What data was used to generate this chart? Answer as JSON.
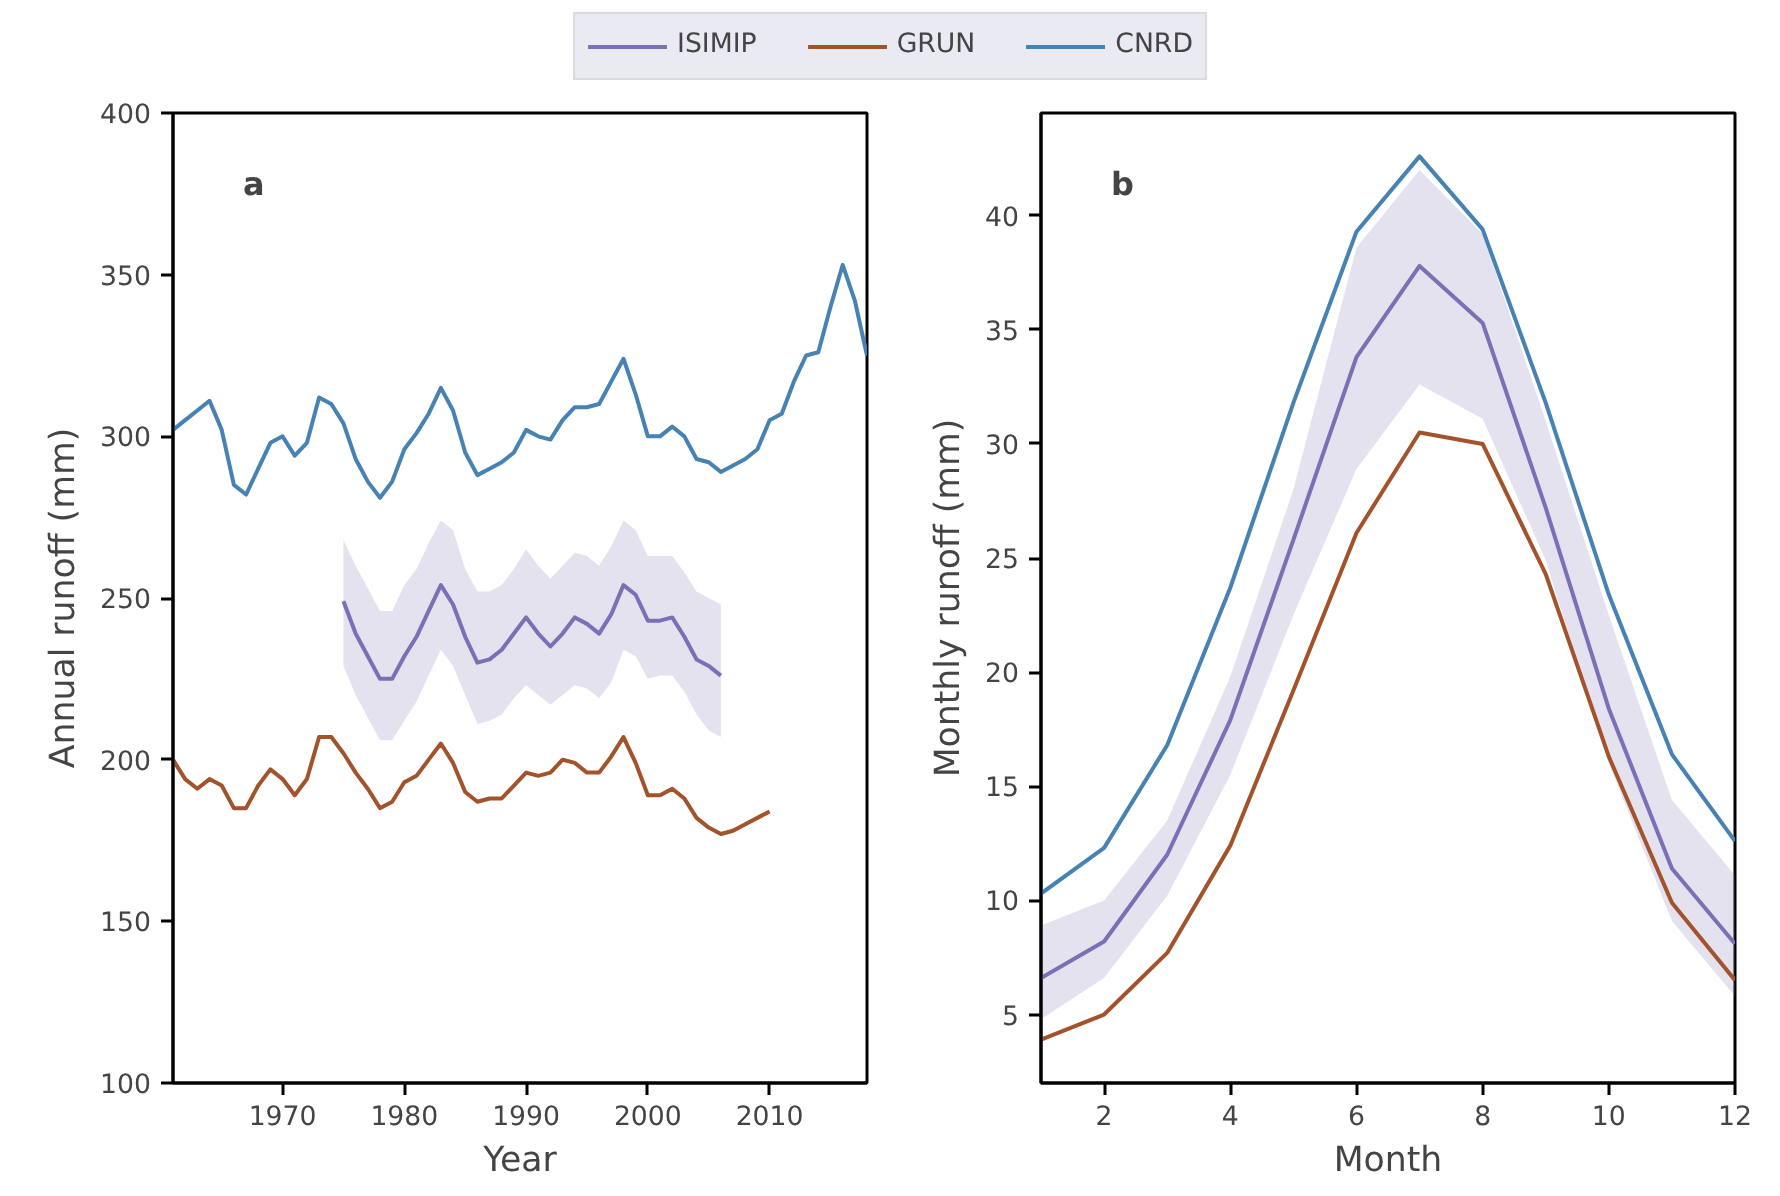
{
  "chart_data": [
    {
      "type": "line",
      "title": "a",
      "xlabel": "Year",
      "ylabel": "Annual runoff (mm)",
      "xlim": [
        1961,
        2018
      ],
      "ylim": [
        100,
        400
      ],
      "xticks": [
        1970,
        1980,
        1990,
        2000,
        2010
      ],
      "yticks": [
        100,
        150,
        200,
        250,
        300,
        350,
        400
      ],
      "grid": false,
      "legend": "top",
      "line_style": "solid",
      "series": [
        {
          "name": "ISIMIP",
          "color": "#7b6fb5",
          "x": [
            1975,
            1976,
            1977,
            1978,
            1979,
            1980,
            1981,
            1982,
            1983,
            1984,
            1985,
            1986,
            1987,
            1988,
            1989,
            1990,
            1991,
            1992,
            1993,
            1994,
            1995,
            1996,
            1997,
            1998,
            1999,
            2000,
            2001,
            2002,
            2003,
            2004,
            2005,
            2006
          ],
          "values": [
            249,
            239,
            232,
            225,
            225,
            232,
            238,
            246,
            254,
            248,
            238,
            230,
            231,
            234,
            239,
            244,
            239,
            235,
            239,
            244,
            242,
            239,
            245,
            254,
            251,
            243,
            243,
            244,
            238,
            231,
            229,
            226
          ],
          "upper": [
            268,
            260,
            253,
            246,
            246,
            254,
            259,
            267,
            274,
            271,
            259,
            252,
            252,
            254,
            259,
            265,
            260,
            256,
            260,
            264,
            263,
            260,
            266,
            274,
            271,
            263,
            263,
            263,
            258,
            252,
            250,
            248
          ],
          "lower": [
            229,
            220,
            213,
            206,
            206,
            212,
            218,
            226,
            234,
            229,
            220,
            211,
            212,
            214,
            219,
            223,
            220,
            217,
            220,
            223,
            222,
            219,
            224,
            234,
            232,
            225,
            226,
            226,
            221,
            214,
            209,
            207
          ]
        },
        {
          "name": "GRUN",
          "color": "#a3532b",
          "x": [
            1961,
            1962,
            1963,
            1964,
            1965,
            1966,
            1967,
            1968,
            1969,
            1970,
            1971,
            1972,
            1973,
            1974,
            1975,
            1976,
            1977,
            1978,
            1979,
            1980,
            1981,
            1982,
            1983,
            1984,
            1985,
            1986,
            1987,
            1988,
            1989,
            1990,
            1991,
            1992,
            1993,
            1994,
            1995,
            1996,
            1997,
            1998,
            1999,
            2000,
            2001,
            2002,
            2003,
            2004,
            2005,
            2006,
            2007,
            2008,
            2009,
            2010
          ],
          "values": [
            200,
            194,
            191,
            194,
            192,
            185,
            185,
            192,
            197,
            194,
            189,
            194,
            207,
            207,
            202,
            196,
            191,
            185,
            187,
            193,
            195,
            200,
            205,
            199,
            190,
            187,
            188,
            188,
            192,
            196,
            195,
            196,
            200,
            199,
            196,
            196,
            201,
            207,
            199,
            189,
            189,
            191,
            188,
            182,
            179,
            177,
            178,
            180,
            182,
            184
          ]
        },
        {
          "name": "CNRD",
          "color": "#4682b4",
          "x": [
            1961,
            1962,
            1963,
            1964,
            1965,
            1966,
            1967,
            1968,
            1969,
            1970,
            1971,
            1972,
            1973,
            1974,
            1975,
            1976,
            1977,
            1978,
            1979,
            1980,
            1981,
            1982,
            1983,
            1984,
            1985,
            1986,
            1987,
            1988,
            1989,
            1990,
            1991,
            1992,
            1993,
            1994,
            1995,
            1996,
            1997,
            1998,
            1999,
            2000,
            2001,
            2002,
            2003,
            2004,
            2005,
            2006,
            2007,
            2008,
            2009,
            2010,
            2011,
            2012,
            2013,
            2014,
            2015,
            2016,
            2017,
            2018
          ],
          "values": [
            302,
            305,
            308,
            311,
            302,
            285,
            282,
            290,
            298,
            300,
            294,
            298,
            312,
            310,
            304,
            293,
            286,
            281,
            286,
            296,
            301,
            307,
            315,
            308,
            295,
            288,
            290,
            292,
            295,
            302,
            300,
            299,
            305,
            309,
            309,
            310,
            317,
            324,
            313,
            300,
            300,
            303,
            300,
            293,
            292,
            289,
            291,
            293,
            296,
            305,
            307,
            317,
            325,
            326,
            340,
            353,
            342,
            325
          ]
        }
      ]
    },
    {
      "type": "line",
      "title": "b",
      "xlabel": "Month",
      "ylabel": "Monthly runoff (mm)",
      "xlim": [
        1,
        12
      ],
      "ylim": [
        2.0,
        44.5
      ],
      "xticks": [
        2,
        4,
        6,
        8,
        10,
        12
      ],
      "yticks": [
        5,
        10,
        15,
        20,
        25,
        30,
        35,
        40
      ],
      "grid": false,
      "legend": "top",
      "line_style": "solid",
      "x": [
        1,
        2,
        3,
        4,
        5,
        6,
        7,
        8,
        9,
        10,
        11,
        12
      ],
      "series": [
        {
          "name": "ISIMIP",
          "color": "#7b6fb5",
          "values": [
            6.6,
            8.2,
            12.0,
            17.9,
            25.8,
            33.8,
            37.8,
            35.3,
            27.2,
            18.4,
            11.4,
            8.1
          ],
          "upper": [
            8.9,
            10.0,
            13.5,
            19.8,
            28.0,
            38.6,
            42.0,
            39.2,
            31.0,
            22.5,
            14.4,
            11.1
          ],
          "lower": [
            4.8,
            6.6,
            10.2,
            15.5,
            22.5,
            28.9,
            32.6,
            31.1,
            24.9,
            16.0,
            9.1,
            5.8
          ]
        },
        {
          "name": "GRUN",
          "color": "#a3532b",
          "values": [
            3.9,
            5.0,
            7.7,
            12.4,
            19.2,
            26.1,
            30.5,
            30.0,
            24.3,
            16.3,
            9.9,
            6.5
          ]
        },
        {
          "name": "CNRD",
          "color": "#4682b4",
          "values": [
            10.3,
            12.3,
            16.8,
            23.7,
            31.8,
            39.3,
            42.6,
            39.4,
            31.8,
            23.4,
            16.4,
            12.6
          ]
        }
      ]
    }
  ]
}
